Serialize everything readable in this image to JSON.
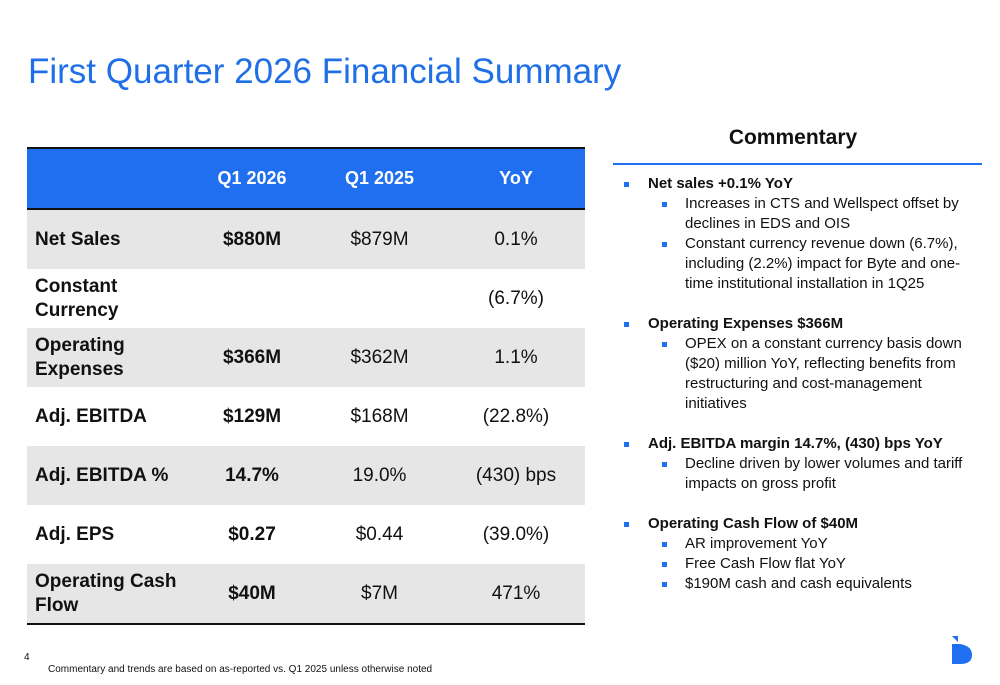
{
  "title": "First Quarter 2026 Financial Summary",
  "table": {
    "headers": [
      "Q1 2026",
      "Q1 2025",
      "YoY"
    ],
    "rows": [
      {
        "label": "Net Sales",
        "q1_2026": "$880M",
        "q1_2025": "$879M",
        "yoy": "0.1%"
      },
      {
        "label": "Constant Currency",
        "q1_2026": null,
        "q1_2025": null,
        "yoy": "(6.7%)"
      },
      {
        "label": "Operating Expenses",
        "q1_2026": "$366M",
        "q1_2025": "$362M",
        "yoy": "1.1%"
      },
      {
        "label": "Adj. EBITDA",
        "q1_2026": "$129M",
        "q1_2025": "$168M",
        "yoy": "(22.8%)"
      },
      {
        "label": "Adj. EBITDA %",
        "q1_2026": "14.7%",
        "q1_2025": "19.0%",
        "yoy": "(430) bps"
      },
      {
        "label": "Adj. EPS",
        "q1_2026": "$0.27",
        "q1_2025": "$0.44",
        "yoy": "(39.0%)"
      },
      {
        "label": "Operating Cash Flow",
        "q1_2026": "$40M",
        "q1_2025": "$7M",
        "yoy": "471%"
      }
    ]
  },
  "commentary": {
    "heading": "Commentary",
    "sections": [
      {
        "title": "Net sales +0.1% YoY",
        "bullets": [
          "Increases in CTS and Wellspect offset by declines in EDS and OIS",
          "Constant currency revenue down (6.7%), including (2.2%) impact for Byte and one-time institutional installation in 1Q25"
        ]
      },
      {
        "title": "Operating Expenses $366M",
        "bullets": [
          "OPEX on a constant currency basis down ($20) million YoY, reflecting benefits from restructuring and cost-management initiatives"
        ]
      },
      {
        "title": "Adj. EBITDA margin 14.7%, (430) bps YoY",
        "bullets": [
          "Decline driven by lower volumes and tariff impacts on gross profit"
        ]
      },
      {
        "title": "Operating Cash Flow of $40M",
        "bullets": [
          "AR improvement YoY",
          "Free Cash Flow flat YoY",
          "$190M cash and cash equivalents"
        ]
      }
    ]
  },
  "footer": {
    "page_number": "4",
    "note": "Commentary and trends are based on as-reported  vs. Q1 2025 unless otherwise noted"
  }
}
